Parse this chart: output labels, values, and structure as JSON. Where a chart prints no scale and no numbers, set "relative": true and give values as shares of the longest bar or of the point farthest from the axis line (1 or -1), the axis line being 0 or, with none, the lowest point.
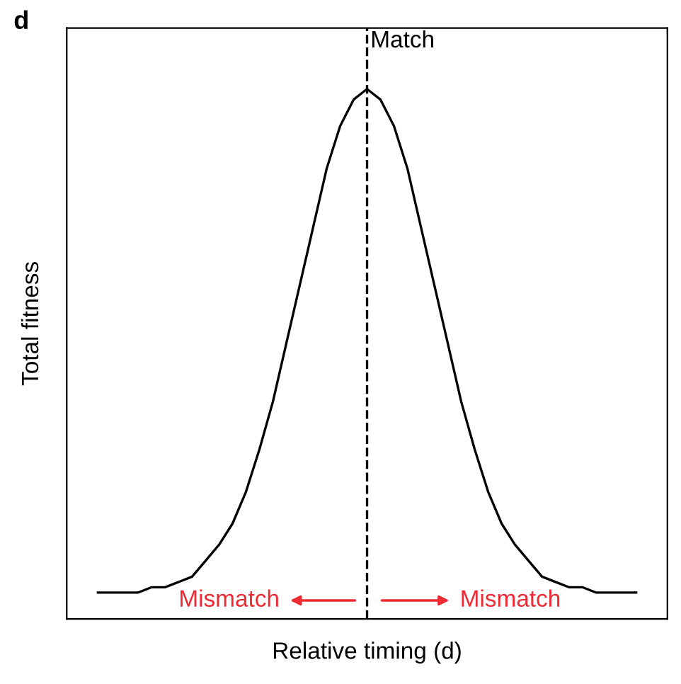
{
  "chart_data": {
    "type": "line",
    "title": "d",
    "xlabel": "Relative timing (d)",
    "ylabel": "Total fitness",
    "relative": true,
    "marker": "none",
    "line_style": "solid",
    "categories": [
      null,
      null,
      null,
      null,
      null,
      null,
      null,
      null,
      null,
      null,
      null,
      null,
      null,
      null,
      null,
      null,
      null,
      null,
      null,
      null,
      null,
      null,
      null,
      null,
      null,
      null,
      null,
      null,
      null,
      null,
      null,
      null,
      null,
      null,
      null,
      null,
      null,
      null,
      null,
      null,
      null
    ],
    "series": [
      {
        "color": "#000000",
        "values": [
          0.05,
          0.05,
          0.05,
          0.05,
          0.06,
          0.06,
          0.07,
          0.08,
          0.11,
          0.14,
          0.18,
          0.24,
          0.32,
          0.41,
          0.52,
          0.63,
          0.74,
          0.85,
          0.93,
          0.98,
          1.0,
          0.98,
          0.93,
          0.85,
          0.74,
          0.63,
          0.52,
          0.41,
          0.32,
          0.24,
          0.18,
          0.14,
          0.11,
          0.08,
          0.07,
          0.06,
          0.06,
          0.05,
          0.05,
          0.05,
          0.05
        ]
      }
    ],
    "ref_lines": [
      {
        "axis": "x",
        "label": "Match",
        "color": "#000000",
        "line_style": "dashed"
      }
    ],
    "annotations": [
      "Mismatch",
      "Mismatch"
    ]
  }
}
